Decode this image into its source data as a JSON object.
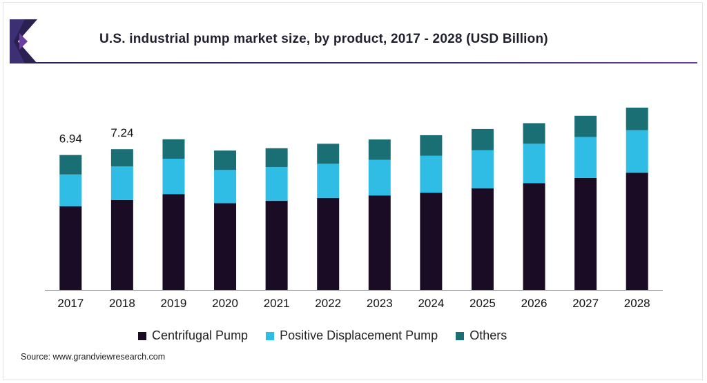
{
  "title": "U.S. industrial pump market size, by product, 2017 - 2028 (USD Billion)",
  "source": "Source: www.grandviewresearch.com",
  "colors": {
    "centrifugal": "#1b0c26",
    "positive_displacement": "#2fbde6",
    "others": "#1a6f74",
    "axis": "#777777",
    "brand_dark": "#2b2150",
    "brand_purple": "#6b3fa0"
  },
  "chart_data": {
    "type": "bar",
    "stacked": true,
    "categories": [
      "2017",
      "2018",
      "2019",
      "2020",
      "2021",
      "2022",
      "2023",
      "2024",
      "2025",
      "2026",
      "2027",
      "2028"
    ],
    "series": [
      {
        "name": "Centrifugal Pump",
        "values": [
          4.3,
          4.62,
          4.93,
          4.46,
          4.59,
          4.73,
          4.86,
          5.0,
          5.23,
          5.49,
          5.76,
          6.03
        ]
      },
      {
        "name": "Positive Displacement Pump",
        "values": [
          1.64,
          1.73,
          1.82,
          1.71,
          1.73,
          1.76,
          1.83,
          1.9,
          1.96,
          2.03,
          2.11,
          2.19
        ]
      },
      {
        "name": "Others",
        "values": [
          1.0,
          0.89,
          1.0,
          1.0,
          0.97,
          1.03,
          1.05,
          1.06,
          1.09,
          1.06,
          1.09,
          1.16
        ]
      }
    ],
    "data_labels": [
      {
        "category": "2017",
        "text": "6.94"
      },
      {
        "category": "2018",
        "text": "7.24"
      }
    ],
    "ylim": [
      0,
      15.5
    ],
    "grid": false,
    "legend_position": "bottom"
  }
}
